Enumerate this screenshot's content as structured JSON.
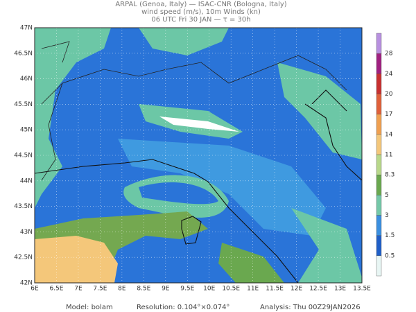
{
  "header": {
    "lines": [
      "ARPAL (Genoa, Italy)  —  ISAC-CNR (Bologna, Italy)",
      "wind speed (m/s), 10m Winds (kn)",
      "06 UTC Fri 30 JAN  —  τ = 30h"
    ]
  },
  "map": {
    "x_labels": [
      "6E",
      "6.5E",
      "7E",
      "7.5E",
      "8E",
      "8.5E",
      "9E",
      "9.5E",
      "10E",
      "10.5E",
      "11E",
      "11.5E",
      "12E",
      "12.5E",
      "13E",
      "13.5E"
    ],
    "y_labels": [
      "47N",
      "46.5N",
      "46N",
      "45.5N",
      "45N",
      "44.5N",
      "44N",
      "43.5N",
      "43N",
      "42.5N",
      "42N"
    ]
  },
  "colorbar": {
    "labels": [
      "0.5",
      "1.5",
      "3",
      "5",
      "8.3",
      "11",
      "14",
      "17",
      "20",
      "24",
      "28"
    ],
    "colors": [
      "#e8f6f4",
      "#1f5fc8",
      "#3a8fe0",
      "#74c8a8",
      "#6aa84f",
      "#b8d88a",
      "#f4c77a",
      "#f0a050",
      "#e0603a",
      "#c83030",
      "#a02080",
      "#b890e0"
    ]
  },
  "footer": {
    "model": "Model:  bolam",
    "resolution": "Resolution:  0.104°×0.074°",
    "analysis": "Analysis:  Thu  00Z29JAN2026"
  }
}
